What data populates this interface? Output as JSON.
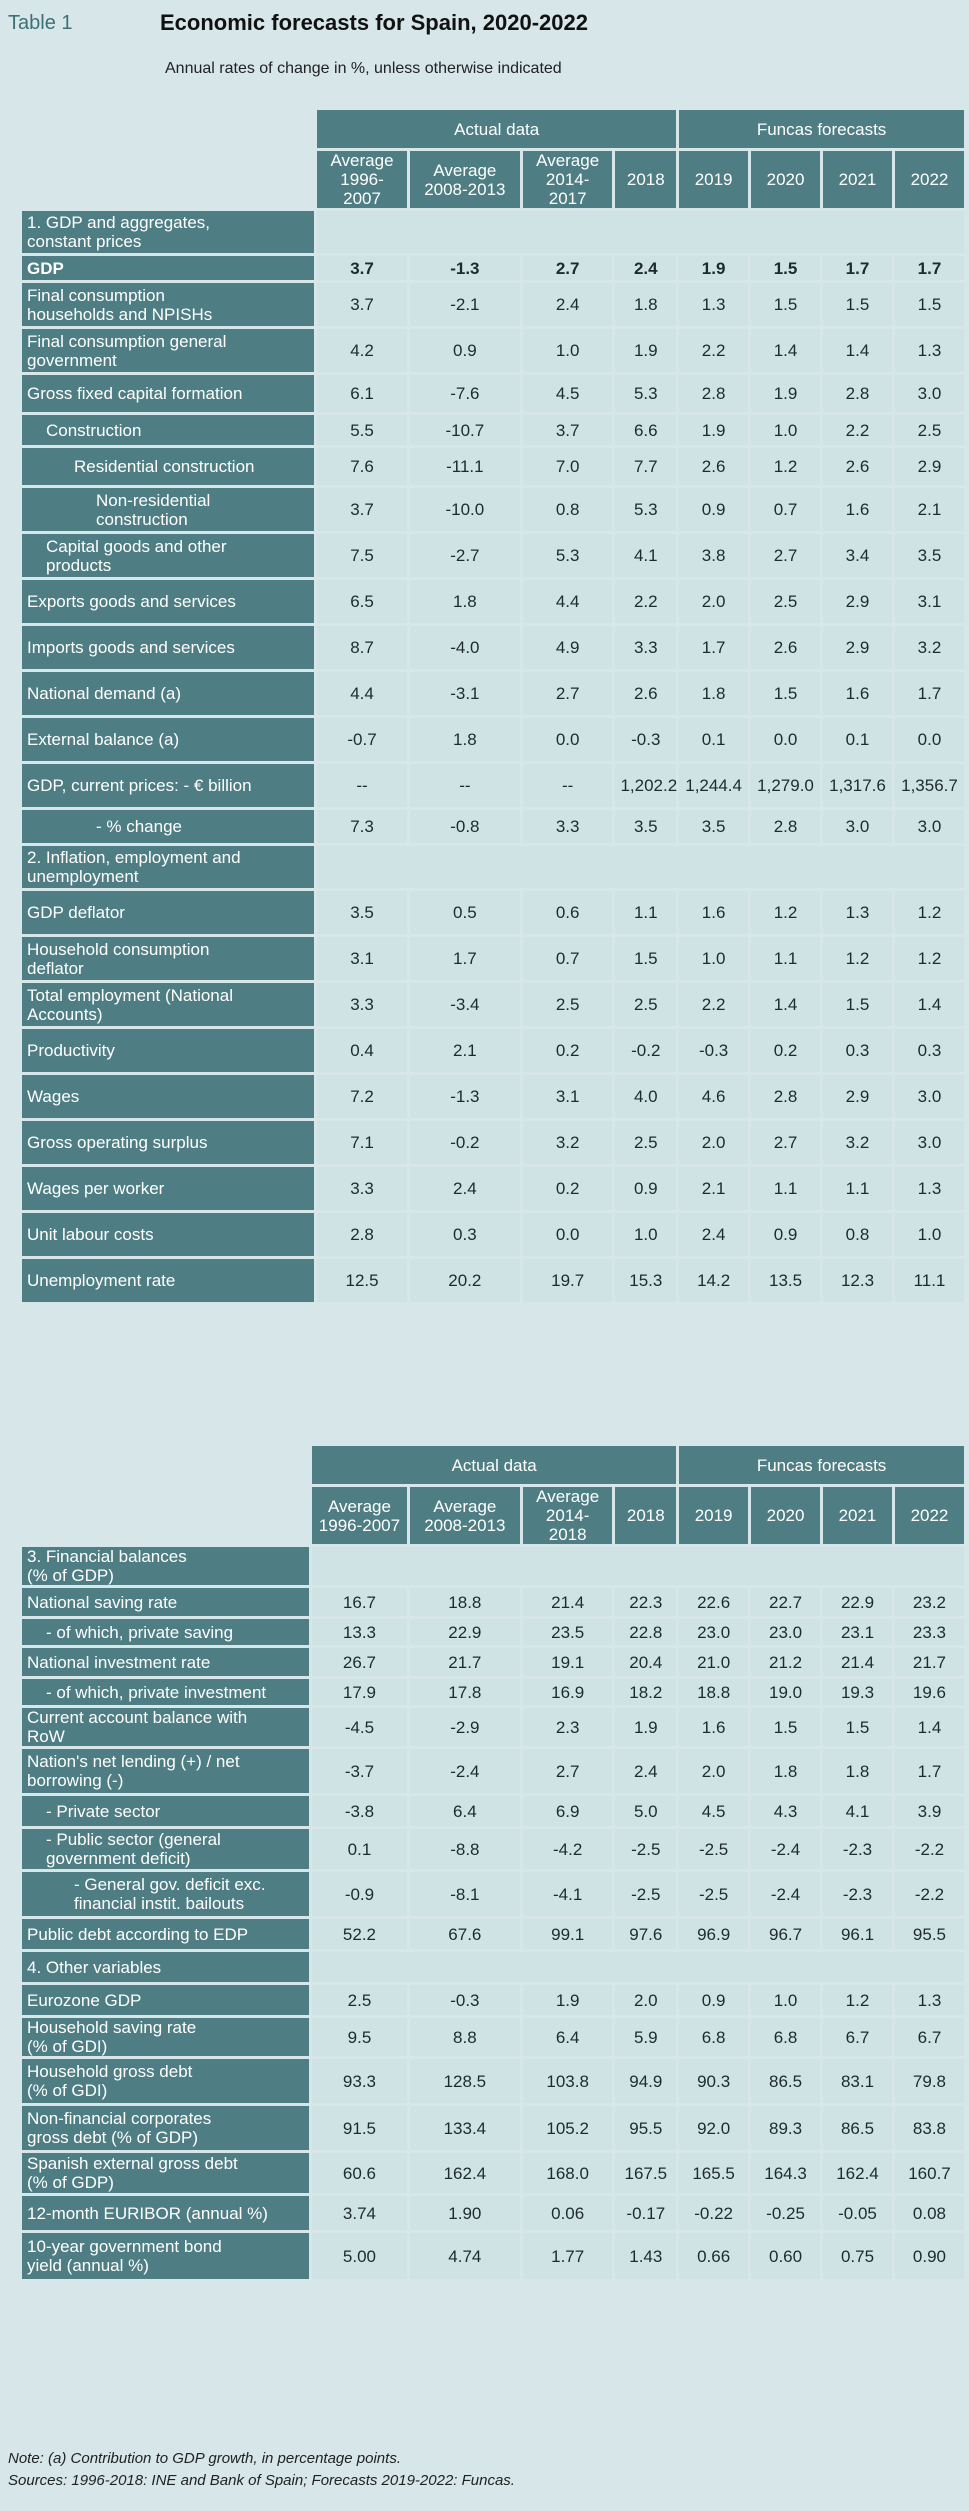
{
  "header": {
    "tag": "Table 1",
    "title": "Economic forecasts for Spain, 2020-2022",
    "subtitle": "Annual rates of change in %, unless otherwise indicated"
  },
  "table1": {
    "group_actual": "Actual data",
    "group_forecast": "Funcas forecasts",
    "cols": [
      "Average\n1996-2007",
      "Average\n2008-2013",
      "Average\n2014-2017",
      "2018",
      "2019",
      "2020",
      "2021",
      "2022"
    ],
    "sec1": "1. GDP and aggregates,\nconstant prices",
    "sec1_rows": [
      {
        "label": "GDP",
        "v": [
          "3.7",
          "-1.3",
          "2.7",
          "2.4",
          "1.9",
          "1.5",
          "1.7",
          "1.7"
        ]
      },
      {
        "label": "Final consumption\nhouseholds and NPISHs",
        "v": [
          "3.7",
          "-2.1",
          "2.4",
          "1.8",
          "1.3",
          "1.5",
          "1.5",
          "1.5"
        ]
      },
      {
        "label": "Final consumption general\ngovernment",
        "v": [
          "4.2",
          "0.9",
          "1.0",
          "1.9",
          "2.2",
          "1.4",
          "1.4",
          "1.3"
        ]
      },
      {
        "label": "Gross fixed capital formation",
        "v": [
          "6.1",
          "-7.6",
          "4.5",
          "5.3",
          "2.8",
          "1.9",
          "2.8",
          "3.0"
        ]
      },
      {
        "label": "Construction",
        "v": [
          "5.5",
          "-10.7",
          "3.7",
          "6.6",
          "1.9",
          "1.0",
          "2.2",
          "2.5"
        ]
      },
      {
        "label": "Residential construction",
        "v": [
          "7.6",
          "-11.1",
          "7.0",
          "7.7",
          "2.6",
          "1.2",
          "2.6",
          "2.9"
        ]
      },
      {
        "label": "Non-residential\nconstruction",
        "v": [
          "3.7",
          "-10.0",
          "0.8",
          "5.3",
          "0.9",
          "0.7",
          "1.6",
          "2.1"
        ]
      },
      {
        "label": "Capital goods and other\nproducts",
        "v": [
          "7.5",
          "-2.7",
          "5.3",
          "4.1",
          "3.8",
          "2.7",
          "3.4",
          "3.5"
        ]
      },
      {
        "label": "Exports goods and services",
        "v": [
          "6.5",
          "1.8",
          "4.4",
          "2.2",
          "2.0",
          "2.5",
          "2.9",
          "3.1"
        ]
      },
      {
        "label": "Imports goods and services",
        "v": [
          "8.7",
          "-4.0",
          "4.9",
          "3.3",
          "1.7",
          "2.6",
          "2.9",
          "3.2"
        ]
      },
      {
        "label": "National demand (a)",
        "v": [
          "4.4",
          "-3.1",
          "2.7",
          "2.6",
          "1.8",
          "1.5",
          "1.6",
          "1.7"
        ]
      },
      {
        "label": "External balance (a)",
        "v": [
          "-0.7",
          "1.8",
          "0.0",
          "-0.3",
          "0.1",
          "0.0",
          "0.1",
          "0.0"
        ]
      },
      {
        "label": "GDP, current prices: - € billion",
        "v": [
          "--",
          "--",
          "--",
          "1,202.2",
          "1,244.4",
          "1,279.0",
          "1,317.6",
          "1,356.7"
        ]
      },
      {
        "label": "- % change",
        "v": [
          "7.3",
          "-0.8",
          "3.3",
          "3.5",
          "3.5",
          "2.8",
          "3.0",
          "3.0"
        ]
      }
    ],
    "sec2": "2. Inflation, employment and\nunemployment",
    "sec2_rows": [
      {
        "label": "GDP deflator",
        "v": [
          "3.5",
          "0.5",
          "0.6",
          "1.1",
          "1.6",
          "1.2",
          "1.3",
          "1.2"
        ]
      },
      {
        "label": "Household consumption\ndeflator",
        "v": [
          "3.1",
          "1.7",
          "0.7",
          "1.5",
          "1.0",
          "1.1",
          "1.2",
          "1.2"
        ]
      },
      {
        "label": "Total employment (National\nAccounts)",
        "v": [
          "3.3",
          "-3.4",
          "2.5",
          "2.5",
          "2.2",
          "1.4",
          "1.5",
          "1.4"
        ]
      },
      {
        "label": "Productivity",
        "v": [
          "0.4",
          "2.1",
          "0.2",
          "-0.2",
          "-0.3",
          "0.2",
          "0.3",
          "0.3"
        ]
      },
      {
        "label": "Wages",
        "v": [
          "7.2",
          "-1.3",
          "3.1",
          "4.0",
          "4.6",
          "2.8",
          "2.9",
          "3.0"
        ]
      },
      {
        "label": "Gross operating surplus",
        "v": [
          "7.1",
          "-0.2",
          "3.2",
          "2.5",
          "2.0",
          "2.7",
          "3.2",
          "3.0"
        ]
      },
      {
        "label": "Wages per worker",
        "v": [
          "3.3",
          "2.4",
          "0.2",
          "0.9",
          "2.1",
          "1.1",
          "1.1",
          "1.3"
        ]
      },
      {
        "label": "Unit labour costs",
        "v": [
          "2.8",
          "0.3",
          "0.0",
          "1.0",
          "2.4",
          "0.9",
          "0.8",
          "1.0"
        ]
      },
      {
        "label": "Unemployment rate",
        "v": [
          "12.5",
          "20.2",
          "19.7",
          "15.3",
          "14.2",
          "13.5",
          "12.3",
          "11.1"
        ]
      }
    ]
  },
  "table2": {
    "group_actual": "Actual data",
    "group_forecast": "Funcas forecasts",
    "cols": [
      "Average\n1996-2007",
      "Average\n2008-2013",
      "Average\n2014-2018",
      "2018",
      "2019",
      "2020",
      "2021",
      "2022"
    ],
    "sec3": "3. Financial balances\n(% of GDP)",
    "sec3_rows": [
      {
        "label": "National saving rate",
        "v": [
          "16.7",
          "18.8",
          "21.4",
          "22.3",
          "22.6",
          "22.7",
          "22.9",
          "23.2"
        ]
      },
      {
        "label": "- of which, private saving",
        "v": [
          "13.3",
          "22.9",
          "23.5",
          "22.8",
          "23.0",
          "23.0",
          "23.1",
          "23.3"
        ]
      },
      {
        "label": "National investment rate",
        "v": [
          "26.7",
          "21.7",
          "19.1",
          "20.4",
          "21.0",
          "21.2",
          "21.4",
          "21.7"
        ]
      },
      {
        "label": "- of which, private investment",
        "v": [
          "17.9",
          "17.8",
          "16.9",
          "18.2",
          "18.8",
          "19.0",
          "19.3",
          "19.6"
        ]
      },
      {
        "label": "Current account balance with\nRoW",
        "v": [
          "-4.5",
          "-2.9",
          "2.3",
          "1.9",
          "1.6",
          "1.5",
          "1.5",
          "1.4"
        ]
      },
      {
        "label": "Nation's net lending (+) / net\nborrowing (-)",
        "v": [
          "-3.7",
          "-2.4",
          "2.7",
          "2.4",
          "2.0",
          "1.8",
          "1.8",
          "1.7"
        ]
      },
      {
        "label": "- Private sector",
        "v": [
          "-3.8",
          "6.4",
          "6.9",
          "5.0",
          "4.5",
          "4.3",
          "4.1",
          "3.9"
        ]
      },
      {
        "label": "- Public sector (general\ngovernment deficit)",
        "v": [
          "0.1",
          "-8.8",
          "-4.2",
          "-2.5",
          "-2.5",
          "-2.4",
          "-2.3",
          "-2.2"
        ]
      },
      {
        "label": "- General gov. deficit exc.\nfinancial instit. bailouts",
        "v": [
          "-0.9",
          "-8.1",
          "-4.1",
          "-2.5",
          "-2.5",
          "-2.4",
          "-2.3",
          "-2.2"
        ]
      },
      {
        "label": "Public debt according to EDP",
        "v": [
          "52.2",
          "67.6",
          "99.1",
          "97.6",
          "96.9",
          "96.7",
          "96.1",
          "95.5"
        ]
      }
    ],
    "sec4": "4. Other variables",
    "sec4_rows": [
      {
        "label": "Eurozone GDP",
        "v": [
          "2.5",
          "-0.3",
          "1.9",
          "2.0",
          "0.9",
          "1.0",
          "1.2",
          "1.3"
        ]
      },
      {
        "label": "Household saving rate\n(% of GDI)",
        "v": [
          "9.5",
          "8.8",
          "6.4",
          "5.9",
          "6.8",
          "6.8",
          "6.7",
          "6.7"
        ]
      },
      {
        "label": "Household gross debt\n(% of GDI)",
        "v": [
          "93.3",
          "128.5",
          "103.8",
          "94.9",
          "90.3",
          "86.5",
          "83.1",
          "79.8"
        ]
      },
      {
        "label": "Non-financial corporates\ngross debt (% of GDP)",
        "v": [
          "91.5",
          "133.4",
          "105.2",
          "95.5",
          "92.0",
          "89.3",
          "86.5",
          "83.8"
        ]
      },
      {
        "label": "Spanish external gross debt\n(% of GDP)",
        "v": [
          "60.6",
          "162.4",
          "168.0",
          "167.5",
          "165.5",
          "164.3",
          "162.4",
          "160.7"
        ]
      },
      {
        "label": "12-month EURIBOR (annual %)",
        "v": [
          "3.74",
          "1.90",
          "0.06",
          "-0.17",
          "-0.22",
          "-0.25",
          "-0.05",
          "0.08"
        ]
      },
      {
        "label": "10-year government bond\nyield (annual %)",
        "v": [
          "5.00",
          "4.74",
          "1.77",
          "1.43",
          "0.66",
          "0.60",
          "0.75",
          "0.90"
        ]
      }
    ]
  },
  "notes": {
    "note": "Note: (a) Contribution to GDP growth, in percentage points.",
    "sources": "Sources: 1996-2018: INE and Bank of Spain; Forecasts 2019-2022: Funcas."
  }
}
